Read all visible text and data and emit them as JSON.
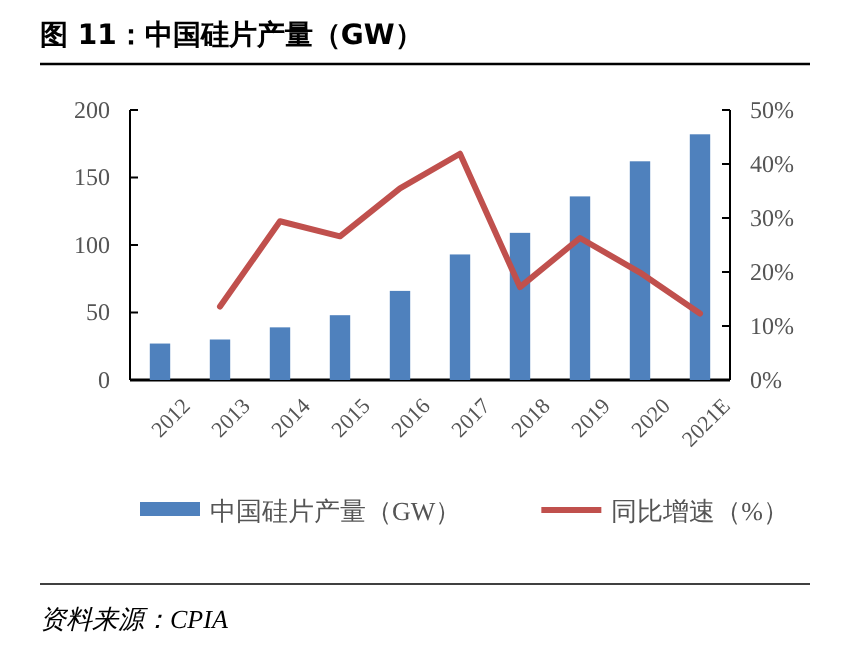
{
  "chart_data": {
    "type": "bar",
    "title": "图 11：中国硅片产量（GW）",
    "categories": [
      "2012",
      "2013",
      "2014",
      "2015",
      "2016",
      "2017",
      "2018",
      "2019",
      "2020",
      "2021E"
    ],
    "series": [
      {
        "name": "中国硅片产量（GW）",
        "color": "#4f81bd",
        "values": [
          27,
          30,
          39,
          48,
          66,
          93,
          109,
          136,
          162,
          182
        ]
      },
      {
        "name": "同比增速（%）",
        "type": "line",
        "axis": "y2",
        "color": "#c0504d",
        "values": [
          null,
          13.6,
          29.4,
          26.6,
          35.5,
          41.9,
          17.2,
          26.3,
          19.9,
          12.3
        ]
      }
    ],
    "ylim": [
      0,
      200
    ],
    "yticks": [
      0,
      50,
      100,
      150,
      200
    ],
    "y2lim": [
      0,
      50
    ],
    "y2ticks": [
      {
        "value": 0,
        "label": "0%"
      },
      {
        "value": 10,
        "label": "10%"
      },
      {
        "value": 20,
        "label": "20%"
      },
      {
        "value": 30,
        "label": "30%"
      },
      {
        "value": 40,
        "label": "40%"
      },
      {
        "value": 50,
        "label": "50%"
      }
    ],
    "legend": "bottom",
    "grid": false,
    "marker": "none",
    "annotations": [
      "资料来源：CPIA"
    ]
  }
}
